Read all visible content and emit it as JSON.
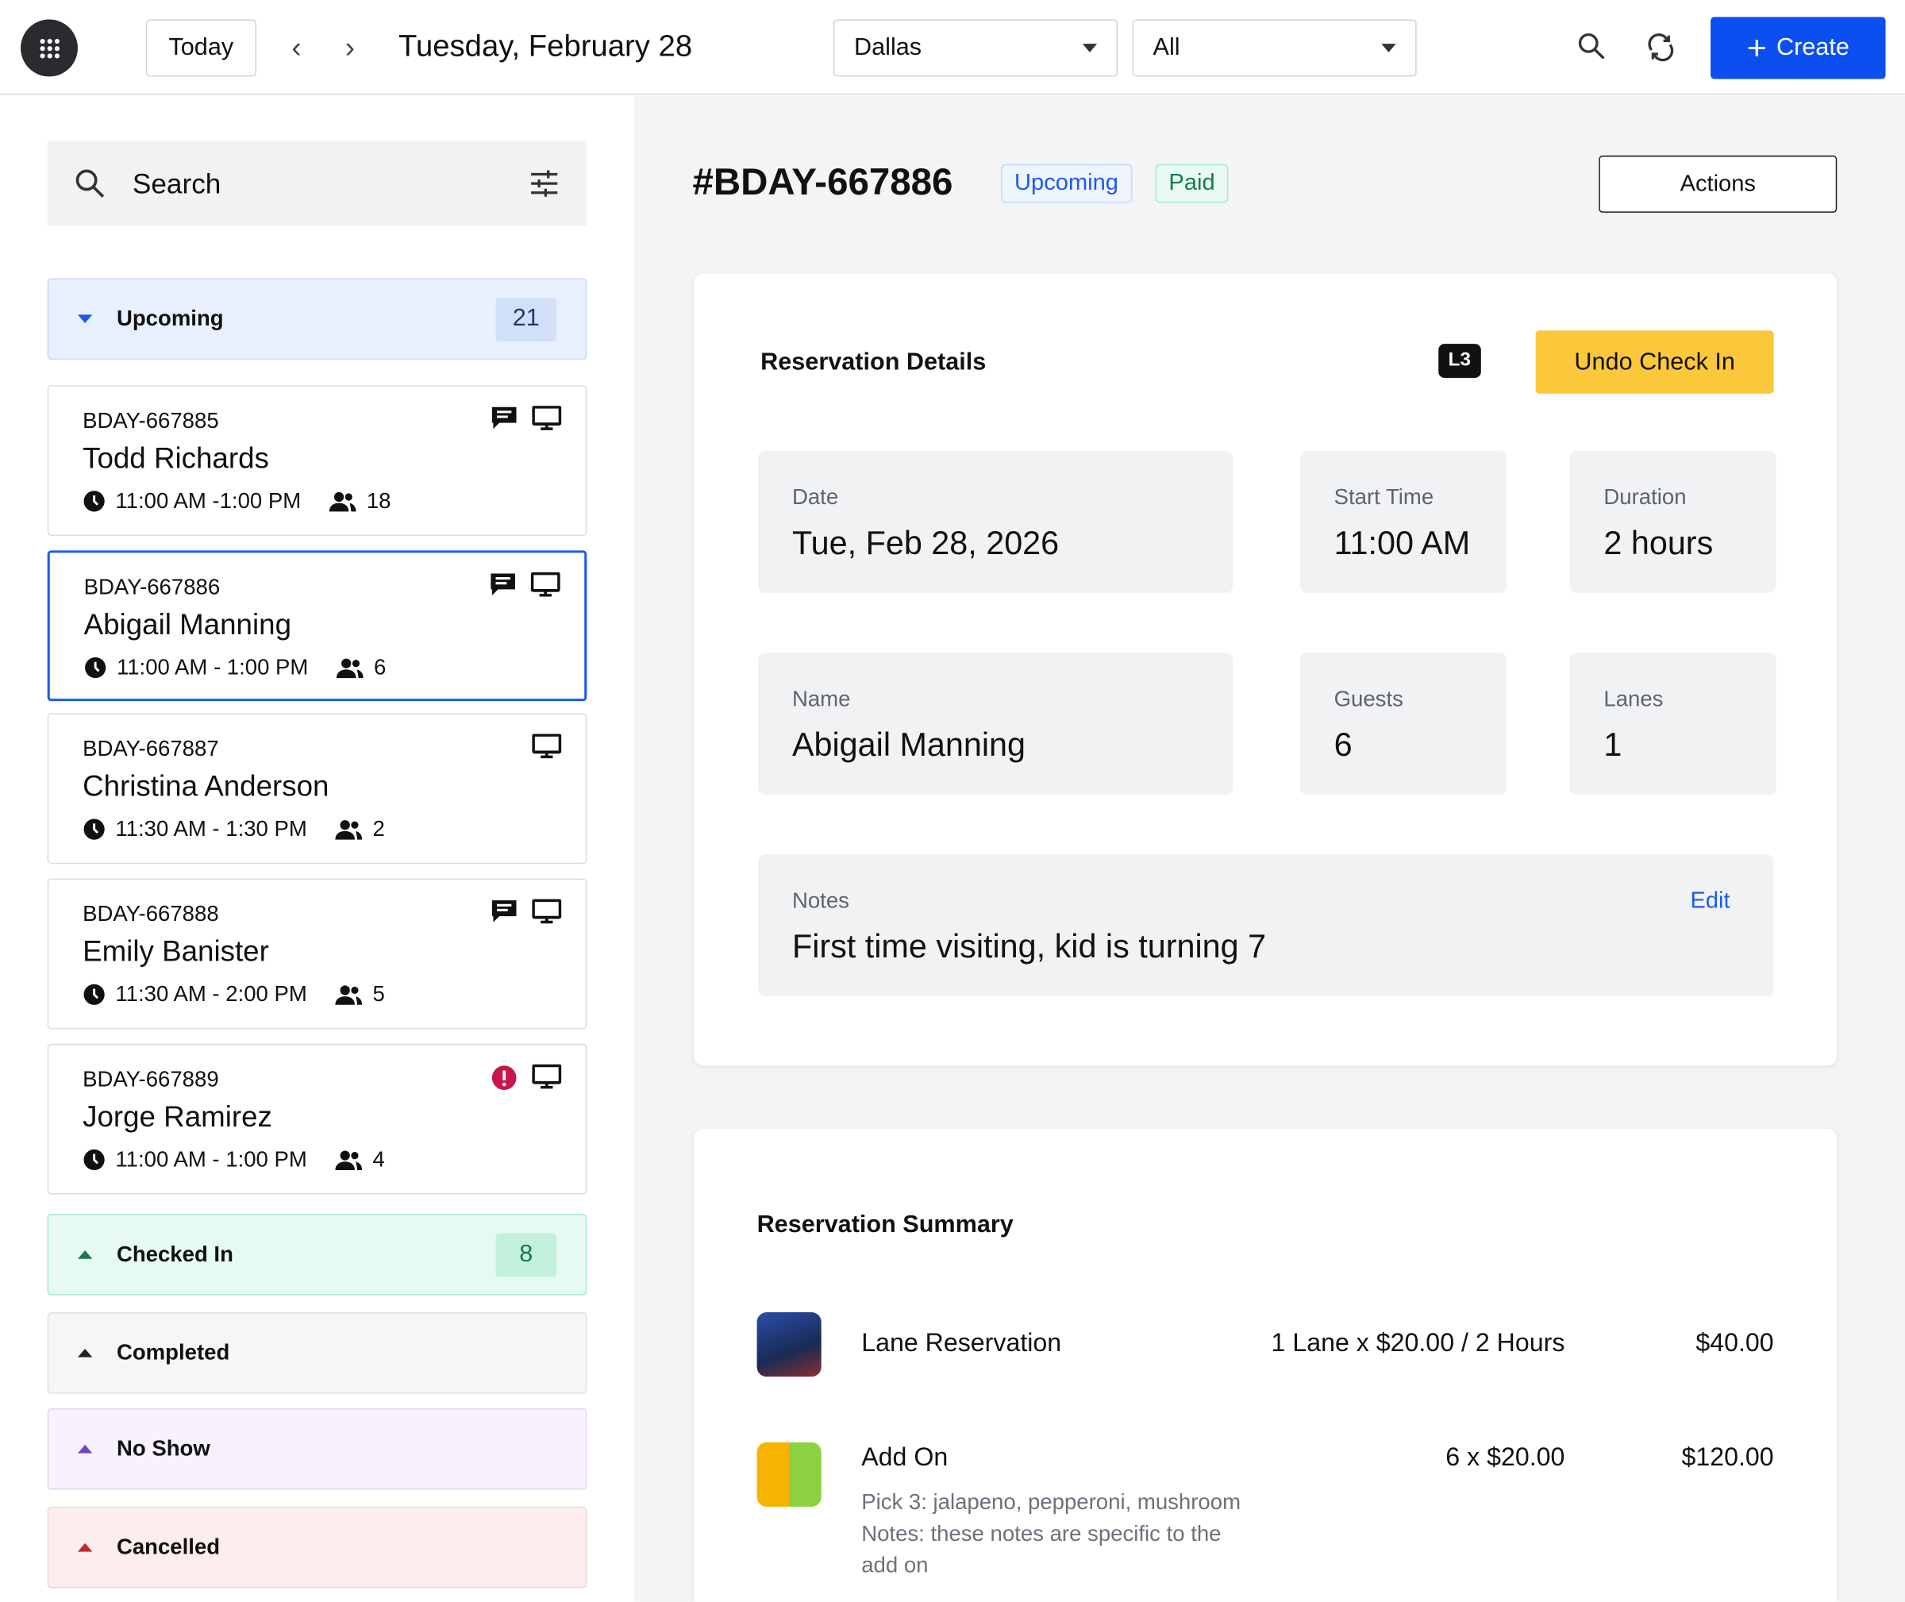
{
  "header": {
    "today": "Today",
    "date": "Tuesday, February 28",
    "location": "Dallas",
    "filter": "All",
    "create": "Create"
  },
  "search": {
    "placeholder": "Search"
  },
  "groups": {
    "upcoming": {
      "label": "Upcoming",
      "count": "21",
      "color": "#e9f0fd"
    },
    "checked_in": {
      "label": "Checked In",
      "count": "8",
      "color": "#e6faf3"
    },
    "completed": {
      "label": "Completed"
    },
    "no_show": {
      "label": "No Show"
    },
    "cancelled": {
      "label": "Cancelled"
    }
  },
  "reservations": [
    {
      "id": "BDAY-667885",
      "name": "Todd Richards",
      "time": "11:00 AM -1:00 PM",
      "guests": "18",
      "icons": [
        "message",
        "monitor"
      ]
    },
    {
      "id": "BDAY-667886",
      "name": "Abigail Manning",
      "time": "11:00 AM - 1:00 PM",
      "guests": "6",
      "icons": [
        "message",
        "monitor"
      ],
      "selected": true
    },
    {
      "id": "BDAY-667887",
      "name": "Christina Anderson",
      "time": "11:30 AM - 1:30 PM",
      "guests": "2",
      "icons": [
        "monitor"
      ]
    },
    {
      "id": "BDAY-667888",
      "name": "Emily Banister",
      "time": "11:30 AM - 2:00 PM",
      "guests": "5",
      "icons": [
        "message",
        "monitor"
      ]
    },
    {
      "id": "BDAY-667889",
      "name": "Jorge Ramirez",
      "time": "11:00 AM - 1:00 PM",
      "guests": "4",
      "icons": [
        "alert",
        "monitor"
      ]
    }
  ],
  "detail": {
    "title": "#BDAY-667886",
    "status": "Upcoming",
    "payment": "Paid",
    "actions": "Actions",
    "section": "Reservation Details",
    "lane_tag": "L3",
    "undo": "Undo Check In",
    "date_label": "Date",
    "date": "Tue, Feb 28, 2026",
    "start_label": "Start Time",
    "start": "11:00 AM",
    "duration_label": "Duration",
    "duration": "2 hours",
    "name_label": "Name",
    "name": "Abigail Manning",
    "guests_label": "Guests",
    "guests": "6",
    "lanes_label": "Lanes",
    "lanes": "1",
    "notes_label": "Notes",
    "notes": "First time visiting, kid is turning 7",
    "edit": "Edit"
  },
  "summary": {
    "title": "Reservation Summary",
    "items": [
      {
        "name": "Lane Reservation",
        "qty": "1 Lane x $20.00 / 2 Hours",
        "total": "$40.00"
      },
      {
        "name": "Add On",
        "qty": "6 x $20.00",
        "total": "$120.00",
        "detail1": "Pick 3: jalapeno, pepperoni, mushroom",
        "detail2": "Notes: these notes are specific to the",
        "detail3": "add on"
      }
    ]
  }
}
